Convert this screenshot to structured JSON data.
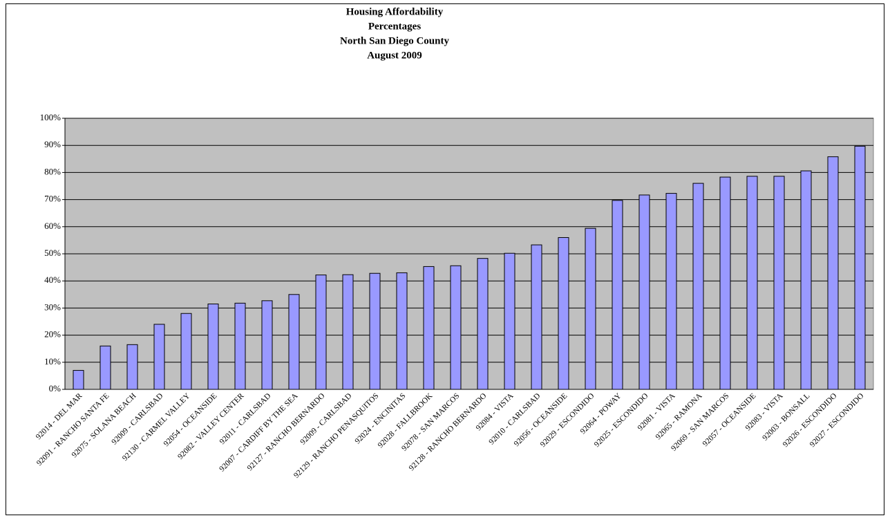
{
  "chart_data": {
    "type": "bar",
    "title": [
      "Housing Affordability",
      "Percentages",
      "North San Diego County",
      "August 2009"
    ],
    "categories": [
      "92014 - DEL MAR",
      "92091 - RANCHO SANTA FE",
      "92075 - SOLANA BEACH",
      "92009 - CARLSBAD",
      "92130 - CARMEL VALLEY",
      "92054 - OCEANSIDE",
      "92082 - VALLEY CENTER",
      "92011 - CARLSBAD",
      "92007 - CARDIFF BY THE SEA",
      "92127 - RANCHO BERNARDO",
      "92009 - CARLSBAD",
      "92129 - RANCHO PENASQUITOS",
      "92024 - ENCINITAS",
      "92028 - FALLBROOK",
      "92078 - SAN MARCOS",
      "92128 - RANCHO BERNARDO",
      "92084 - VISTA",
      "92010 - CARLSBAD",
      "92056 - OCEANSIDE",
      "92029 - ESCONDIDO",
      "92064 - POWAY",
      "92025 - ESCONDIDO",
      "92081 - VISTA",
      "92065 - RAMONA",
      "92069 - SAN MARCOS",
      "92057 - OCEANSIDE",
      "92083 - VISTA",
      "92003 - BONSALL",
      "92026 - ESCONDIDO",
      "92027 - ESCONDIDO"
    ],
    "values": [
      7,
      16,
      16.5,
      24,
      28,
      31.5,
      31.8,
      32.7,
      35,
      42.2,
      42.3,
      42.8,
      43,
      45.3,
      45.6,
      48.3,
      50.2,
      53.3,
      56,
      59.4,
      69.7,
      71.7,
      72.3,
      76,
      78.3,
      78.6,
      78.6,
      80.6,
      85.8,
      89.7
    ],
    "color": "#9999ff",
    "ylim": [
      0,
      100
    ],
    "yticks": [
      {
        "value": 0,
        "label": "0%"
      },
      {
        "value": 10,
        "label": "10%"
      },
      {
        "value": 20,
        "label": "20%"
      },
      {
        "value": 30,
        "label": "30%"
      },
      {
        "value": 40,
        "label": "40%"
      },
      {
        "value": 50,
        "label": "50%"
      },
      {
        "value": 60,
        "label": "60%"
      },
      {
        "value": 70,
        "label": "70%"
      },
      {
        "value": 80,
        "label": "80%"
      },
      {
        "value": 90,
        "label": "90%"
      },
      {
        "value": 100,
        "label": "100%"
      }
    ],
    "grid": true
  }
}
